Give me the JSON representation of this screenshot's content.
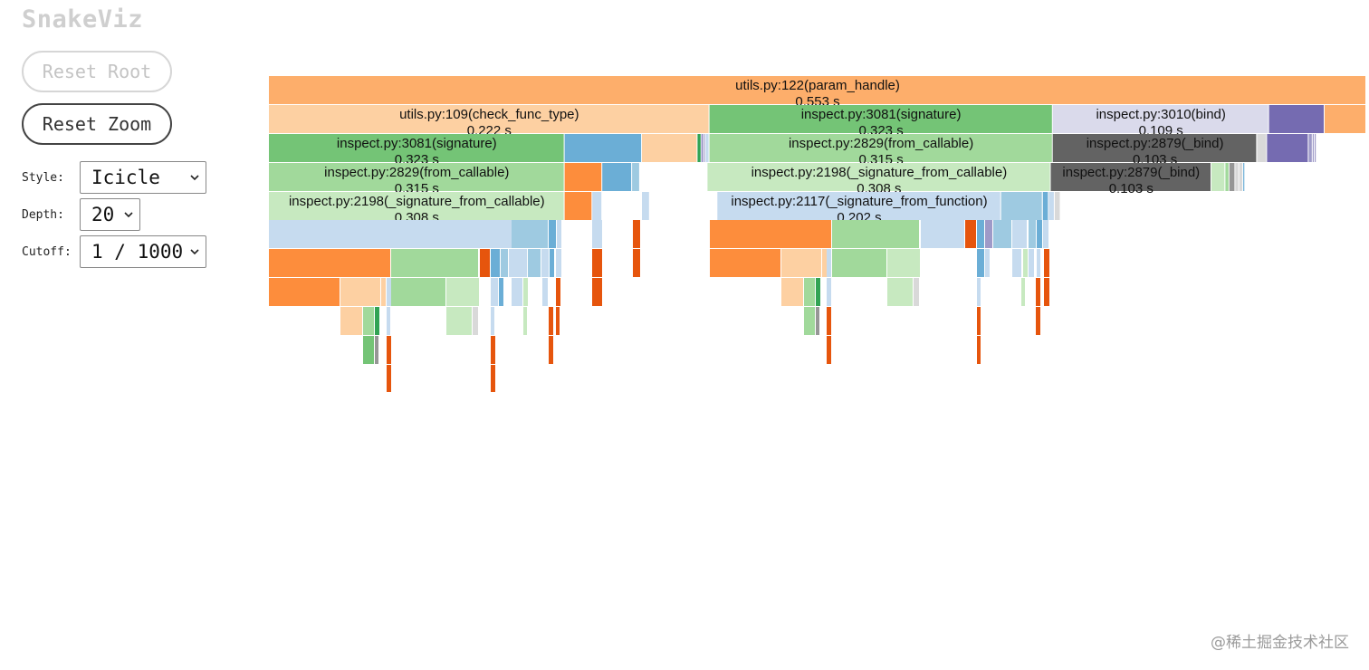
{
  "app": {
    "title": "SnakeViz"
  },
  "controls": {
    "reset_root_label": "Reset Root",
    "reset_zoom_label": "Reset Zoom",
    "style": {
      "label": "Style:",
      "value": "Icicle"
    },
    "depth": {
      "label": "Depth:",
      "value": "20"
    },
    "cutoff": {
      "label": "Cutoff:",
      "value": "1 / 1000"
    }
  },
  "watermark": "@稀土掘金技术社区",
  "colors": {
    "orange": "#fdae6b",
    "light_orange": "#fdd0a2",
    "dark_orange": "#fd8d3c",
    "deep_orange": "#e6550d",
    "green": "#74c476",
    "light_green": "#a1d99b",
    "pale_green": "#c7e9c0",
    "dark_green": "#31a354",
    "blue": "#6baed6",
    "light_blue": "#9ecae1",
    "pale_blue": "#c6dbef",
    "lavender": "#dadaeb",
    "purple": "#756bb1",
    "light_purple": "#9e9ac8",
    "dark_gray": "#636363",
    "gray": "#969696",
    "light_gray": "#d9d9d9"
  },
  "chart_data": {
    "type": "icicle",
    "unit": "s",
    "total_time": 0.553,
    "levels": [
      [
        {
          "name": "utils.py:122(param_handle)",
          "time": 0.553,
          "color": "orange",
          "labeled": true
        }
      ],
      [
        {
          "name": "utils.py:109(check_func_type)",
          "time": 0.222,
          "color": "light_orange",
          "labeled": true
        },
        {
          "name": "inspect.py:3081(signature)",
          "time": 0.173,
          "display_time": 0.323,
          "color": "green",
          "labeled": true
        },
        {
          "name": "inspect.py:3010(bind)",
          "time": 0.109,
          "color": "lavender",
          "labeled": true
        },
        {
          "name": "",
          "time": 0.028,
          "color": "purple"
        },
        {
          "name": "",
          "time": 0.021,
          "color": "orange"
        }
      ],
      [
        {
          "name": "inspect.py:3081(signature)",
          "time": 0.149,
          "display_time": 0.323,
          "color": "green",
          "labeled": true
        },
        {
          "name": "",
          "time": 0.039,
          "color": "blue"
        },
        {
          "name": "",
          "time": 0.028,
          "color": "light_orange"
        },
        {
          "name": "",
          "time": 0.002,
          "color": "dark_green"
        },
        {
          "name": "",
          "time": 0.001,
          "color": "purple"
        },
        {
          "name": "",
          "time": 0.001,
          "color": "light_purple"
        },
        {
          "name": "",
          "time": 0.002,
          "color": "pale_blue"
        },
        {
          "name": "inspect.py:2829(from_callable)",
          "time": 0.173,
          "display_time": 0.315,
          "color": "light_green",
          "labeled": true
        },
        {
          "name": "inspect.py:2879(_bind)",
          "time": 0.103,
          "color": "dark_gray",
          "labeled": true
        },
        {
          "name": "",
          "time": 0.005,
          "color": "light_gray"
        },
        {
          "name": "",
          "time": 0.021,
          "color": "purple"
        },
        {
          "name": "",
          "time": 0.002,
          "color": "light_purple"
        },
        {
          "name": "",
          "time": 0.001,
          "color": "light_purple"
        },
        {
          "name": "",
          "time": 0.001,
          "color": "light_purple"
        }
      ],
      [
        {
          "name": "inspect.py:2829(from_callable)",
          "time": 0.149,
          "display_time": 0.315,
          "color": "light_green",
          "labeled": true
        },
        {
          "name": "",
          "time": 0.019,
          "color": "dark_orange"
        },
        {
          "name": "",
          "time": 0.015,
          "color": "blue"
        },
        {
          "name": "",
          "time": 0.004,
          "color": "light_blue"
        },
        {
          "name": "",
          "time": 0.034,
          "color": "gap"
        },
        {
          "name": "inspect.py:2198(_signature_from_callable)",
          "time": 0.173,
          "display_time": 0.308,
          "color": "pale_green",
          "labeled": true
        },
        {
          "name": "inspect.py:2879(_bind)",
          "time": 0.081,
          "display_time": 0.103,
          "color": "dark_gray",
          "labeled": true
        },
        {
          "name": "",
          "time": 0.007,
          "color": "pale_green"
        },
        {
          "name": "",
          "time": 0.002,
          "color": "light_green"
        },
        {
          "name": "",
          "time": 0.003,
          "color": "gray"
        },
        {
          "name": "",
          "time": 0.002,
          "color": "light_gray"
        },
        {
          "name": "",
          "time": 0.002,
          "color": "light_gray"
        },
        {
          "name": "",
          "time": 0.001,
          "color": "blue"
        }
      ],
      [
        {
          "name": "inspect.py:2198(_signature_from_callable)",
          "time": 0.149,
          "display_time": 0.308,
          "color": "pale_green",
          "labeled": true
        },
        {
          "name": "",
          "time": 0.014,
          "color": "dark_orange"
        },
        {
          "name": "",
          "time": 0.005,
          "color": "pale_blue"
        },
        {
          "name": "",
          "time": 0.02,
          "color": "gap"
        },
        {
          "name": "",
          "time": 0.004,
          "color": "pale_blue"
        },
        {
          "name": "",
          "time": 0.034,
          "color": "gap"
        },
        {
          "name": "inspect.py:2117(_signature_from_function)",
          "time": 0.143,
          "display_time": 0.202,
          "color": "pale_blue",
          "labeled": true
        },
        {
          "name": "",
          "time": 0.021,
          "color": "light_blue"
        },
        {
          "name": "",
          "time": 0.003,
          "color": "blue"
        },
        {
          "name": "",
          "time": 0.003,
          "color": "pale_blue"
        },
        {
          "name": "",
          "time": 0.003,
          "color": "light_gray"
        }
      ]
    ]
  }
}
